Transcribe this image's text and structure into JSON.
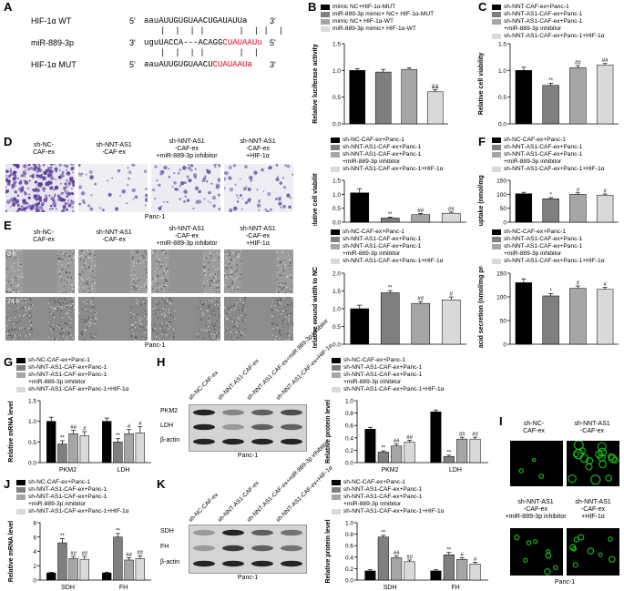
{
  "colors": {
    "black": "#000000",
    "dark": "#7f7f7f",
    "mid": "#a6a6a6",
    "light": "#d9d9d9",
    "red": "#e0001b",
    "green": "#1fd21f"
  },
  "panels": {
    "A": "A",
    "B": "B",
    "C": "C",
    "D": "D",
    "E": "E",
    "F": "F",
    "G": "G",
    "H": "H",
    "I": "I",
    "J": "J",
    "K": "K"
  },
  "panelA": {
    "rows": [
      {
        "label": "HIF-1α WT",
        "p5": "5'",
        "seq_black": "aauAUUGUGUAACUGAUAUUa",
        "seq_red": "",
        "p3": "3'"
      },
      {
        "label": "miR-889-3p",
        "p5": "3'",
        "seq_black": "uguUACCA---ACAGG",
        "seq_red": "CUAUAAUu",
        "p3": "5'"
      },
      {
        "label": "HIF-1α MUT",
        "p5": "5'",
        "seq_black": "aauAUUGUGUAACU",
        "seq_red": "CUAUAAUa",
        "p3": "3'"
      }
    ]
  },
  "legends": {
    "B": [
      "mimic NC+HIF-1α-MUT",
      "miR-889-3p mimic+ NC+ HIF-1α-MUT",
      "mimic NC+ HIF-1α-WT",
      "miR-889-3p mimic+ HIF-1α-WT"
    ],
    "C": [
      "sh-NNT-CAF-ex+Panc-1",
      "sh-NNT-AS1-CAF-ex+Panc-1",
      "sh-NNT-AS1-CAF-ex+Panc-1",
      "+miR-889-3p inhibitor",
      "sh-NNT-AS1-CAF-ex+Panc-1+HIF-1α"
    ],
    "std": [
      "sh-NC-CAF-ex+Panc-1",
      "sh-NNT-AS1-CAF-ex+Panc-1",
      "sh-NNT-AS1-CAF-ex+Panc-1",
      "+miR-889-3p inhibitor",
      "sh-NNT-AS1-CAF-ex+Panc-1+HIF-1α"
    ]
  },
  "captions": {
    "d1": "sh-NC-\nCAF-ex",
    "d2": "sh-NNT-AS1\n-CAF-ex",
    "d3": "sh-NNT-AS1\n-CAF-ex\n+miR-889-3p inhibitor",
    "d4": "sh-NNT-AS1\n-CAF-ex\n+HIF-1α",
    "panc1": "Panc-1",
    "t0": "0 h",
    "t24": "24 h",
    "blot_h1": "sh-NC-CAF-ex",
    "blot_h2": "sh-NNT-AS1-CAF-ex",
    "blot_h3": "sh-NNT-AS1-CAF-ex+miR-889-3p inhibitor",
    "blot_h4": "sh-NNT-AS1-CAF-ex+HIF-1α",
    "blot_k1": "sh-NC-CAF-ex",
    "blot_k2": "sh-NNT-AS1-CAF-ex",
    "blot_k3": "sh-NNT-AS1-CAF-ex+miR-889-3p inhibitor",
    "blot_k4": "sh-NNT-AS1-CAF-ex+HIF-1α",
    "pkm2": "PKM2",
    "ldh": "LDH",
    "bactin": "β-actin",
    "sdh": "SDH",
    "fh": "FH"
  },
  "chart_data": [
    {
      "id": "B",
      "type": "bar",
      "ylabel": "Relative luciferase activity",
      "yticks": [
        "0.0",
        "0.5",
        "1.0",
        "1.5"
      ],
      "ylim": [
        0,
        1.5
      ],
      "values": [
        1.0,
        0.97,
        1.02,
        0.6
      ],
      "errors": [
        0.03,
        0.05,
        0.03,
        0.04
      ],
      "marks": [
        "",
        "",
        "",
        "&&"
      ]
    },
    {
      "id": "C",
      "type": "bar",
      "ylabel": "Relative cell viability",
      "yticks": [
        "0.0",
        "0.5",
        "1.0",
        "1.5"
      ],
      "ylim": [
        0,
        1.5
      ],
      "values": [
        1.0,
        0.72,
        1.05,
        1.1
      ],
      "errors": [
        0.06,
        0.04,
        0.04,
        0.03
      ],
      "marks": [
        "",
        "**",
        "##",
        "##"
      ]
    },
    {
      "id": "D",
      "type": "bar",
      "ylabel": "Relative cell viability",
      "yticks": [
        "0.0",
        "0.5",
        "1.0",
        "1.5"
      ],
      "ylim": [
        0,
        1.5
      ],
      "values": [
        1.05,
        0.15,
        0.27,
        0.32
      ],
      "errors": [
        0.15,
        0.03,
        0.04,
        0.04
      ],
      "marks": [
        "",
        "**",
        "##",
        "##"
      ]
    },
    {
      "id": "E",
      "type": "bar",
      "ylabel": "Relative wound width to NC",
      "yticks": [
        "0.0",
        "0.5",
        "1.0",
        "1.5",
        "2.0"
      ],
      "ylim": [
        0,
        2.0
      ],
      "values": [
        1.0,
        1.45,
        1.15,
        1.25
      ],
      "errors": [
        0.1,
        0.06,
        0.05,
        0.08
      ],
      "marks": [
        "",
        "**",
        "##",
        "#"
      ]
    },
    {
      "id": "F",
      "type": "bar",
      "ylabel": "Glucose uptake (nmol/mg protein)",
      "yticks": [
        "0",
        "50",
        "100",
        "150"
      ],
      "ylim": [
        0,
        150
      ],
      "values": [
        102,
        84,
        100,
        97
      ],
      "errors": [
        5,
        4,
        5,
        4
      ],
      "marks": [
        "",
        "*",
        "#",
        "#"
      ]
    },
    {
      "id": "F2",
      "type": "bar",
      "ylabel": "Lactic acid secretion (nmol/mg protein)",
      "yticks": [
        "0",
        "50",
        "100",
        "150"
      ],
      "ylim": [
        0,
        150
      ],
      "values": [
        130,
        102,
        118,
        116
      ],
      "errors": [
        8,
        5,
        5,
        4
      ],
      "marks": [
        "",
        "*",
        "#",
        "#"
      ]
    },
    {
      "id": "G",
      "type": "bar",
      "ylabel": "Relative mRNA level",
      "yticks": [
        "0.0",
        "0.5",
        "1.0",
        "1.5"
      ],
      "ylim": [
        0,
        1.5
      ],
      "groups": [
        "PKM2",
        "LDH"
      ],
      "values": [
        [
          1.0,
          0.45,
          0.7,
          0.65
        ],
        [
          1.0,
          0.5,
          0.7,
          0.72
        ]
      ],
      "errors": [
        [
          0.1,
          0.08,
          0.08,
          0.1
        ],
        [
          0.08,
          0.08,
          0.1,
          0.15
        ]
      ],
      "marks": [
        [
          "",
          "**",
          "##",
          "#"
        ],
        [
          "",
          "**",
          "#",
          "#"
        ]
      ]
    },
    {
      "id": "H",
      "type": "bar",
      "ylabel": "Relative protein level",
      "yticks": [
        "0.0",
        "0.2",
        "0.4",
        "0.6",
        "0.8",
        "1.0"
      ],
      "ylim": [
        0,
        1.0
      ],
      "groups": [
        "PKM2",
        "LDH"
      ],
      "values": [
        [
          0.54,
          0.17,
          0.27,
          0.33
        ],
        [
          0.82,
          0.1,
          0.38,
          0.38
        ]
      ],
      "errors": [
        [
          0.03,
          0.02,
          0.03,
          0.03
        ],
        [
          0.03,
          0.02,
          0.03,
          0.03
        ]
      ],
      "marks": [
        [
          "",
          "**",
          "##",
          "##"
        ],
        [
          "",
          "**",
          "##",
          "##"
        ]
      ]
    },
    {
      "id": "J",
      "type": "bar",
      "ylabel": "Relative mRNA level",
      "yticks": [
        "0",
        "2",
        "4",
        "6",
        "8"
      ],
      "ylim": [
        0,
        8
      ],
      "groups": [
        "SDH",
        "FH"
      ],
      "values": [
        [
          1.0,
          5.2,
          3.0,
          2.9
        ],
        [
          1.0,
          6.0,
          2.8,
          3.0
        ]
      ],
      "errors": [
        [
          0.1,
          0.6,
          0.3,
          0.4
        ],
        [
          0.1,
          0.5,
          0.3,
          0.4
        ]
      ],
      "marks": [
        [
          "",
          "**",
          "##",
          "##"
        ],
        [
          "",
          "**",
          "##",
          "##"
        ]
      ]
    },
    {
      "id": "K",
      "type": "bar",
      "ylabel": "Relative protein level",
      "yticks": [
        "0.0",
        "0.2",
        "0.4",
        "0.6",
        "0.8",
        "1.0"
      ],
      "ylim": [
        0,
        1.0
      ],
      "groups": [
        "SDH",
        "FH"
      ],
      "values": [
        [
          0.16,
          0.75,
          0.39,
          0.32
        ],
        [
          0.16,
          0.44,
          0.36,
          0.28
        ]
      ],
      "errors": [
        [
          0.02,
          0.03,
          0.03,
          0.03
        ],
        [
          0.02,
          0.04,
          0.03,
          0.03
        ]
      ],
      "marks": [
        [
          "",
          "**",
          "##",
          "##"
        ],
        [
          "",
          "**",
          "#",
          "#"
        ]
      ]
    }
  ]
}
